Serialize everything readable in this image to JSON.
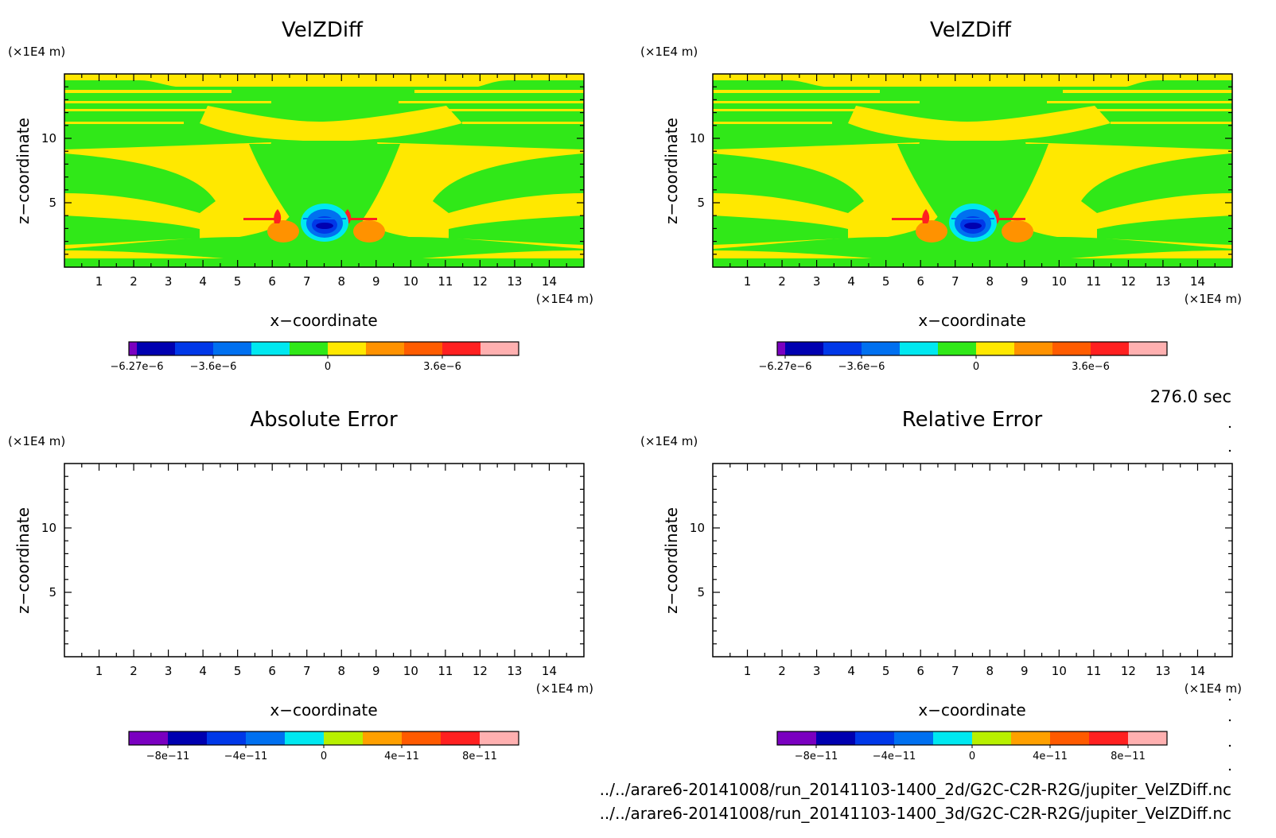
{
  "time_label": "276.0 sec",
  "file_paths": [
    "../../arare6-20141008/run_20141103-1400_2d/G2C-C2R-R2G/jupiter_VelZDiff.nc",
    "../../arare6-20141008/run_20141103-1400_3d/G2C-C2R-R2G/jupiter_VelZDiff.nc"
  ],
  "colors": {
    "velz_colorbar": [
      "#7a00c0",
      "#0000b0",
      "#0038e8",
      "#0070f0",
      "#00e8f0",
      "#30e818",
      "#ffe800",
      "#ff9200",
      "#ff5c00",
      "#ff2020",
      "#ffb0b0"
    ],
    "error_colorbar": [
      "#7a00c0",
      "#0000b0",
      "#0038e8",
      "#0070f0",
      "#00e8f0",
      "#b8f000",
      "#ffa000",
      "#ff5a00",
      "#ff2020",
      "#ffb0b0"
    ]
  },
  "chart_data": [
    {
      "type": "heatmap",
      "title": "VelZDiff",
      "xlabel": "x−coordinate",
      "ylabel": "z−coordinate",
      "x_unit": "(×1E4 m)",
      "y_unit": "(×1E4 m)",
      "xlim": [
        0,
        15
      ],
      "ylim": [
        0,
        15
      ],
      "x_ticks": [
        1,
        2,
        3,
        4,
        5,
        6,
        7,
        8,
        9,
        10,
        11,
        12,
        13,
        14
      ],
      "y_ticks": [
        5,
        10
      ],
      "colorbar_ticks": [
        "−6.27e−6",
        "−3.6e−6",
        "0",
        "3.6e−6"
      ],
      "field": "green/yellow banded vertical velocity difference with a blue downdraft core near x=7.6 z=3 and orange/red lobes on either side"
    },
    {
      "type": "heatmap",
      "title": "VelZDiff",
      "xlabel": "x−coordinate",
      "ylabel": "z−coordinate",
      "x_unit": "(×1E4 m)",
      "y_unit": "(×1E4 m)",
      "xlim": [
        0,
        15
      ],
      "ylim": [
        0,
        15
      ],
      "x_ticks": [
        1,
        2,
        3,
        4,
        5,
        6,
        7,
        8,
        9,
        10,
        11,
        12,
        13,
        14
      ],
      "y_ticks": [
        5,
        10
      ],
      "colorbar_ticks": [
        "−6.27e−6",
        "−3.6e−6",
        "0",
        "3.6e−6"
      ],
      "field": "identical to the first panel"
    },
    {
      "type": "heatmap",
      "title": "Absolute Error",
      "xlabel": "x−coordinate",
      "ylabel": "z−coordinate",
      "x_unit": "(×1E4 m)",
      "y_unit": "(×1E4 m)",
      "xlim": [
        0,
        15
      ],
      "ylim": [
        0,
        15
      ],
      "x_ticks": [
        1,
        2,
        3,
        4,
        5,
        6,
        7,
        8,
        9,
        10,
        11,
        12,
        13,
        14
      ],
      "y_ticks": [
        5,
        10
      ],
      "colorbar_ticks": [
        "−8e−11",
        "−4e−11",
        "0",
        "4e−11",
        "8e−11"
      ],
      "field": "empty (zero everywhere)"
    },
    {
      "type": "heatmap",
      "title": "Relative Error",
      "xlabel": "x−coordinate",
      "ylabel": "z−coordinate",
      "x_unit": "(×1E4 m)",
      "y_unit": "(×1E4 m)",
      "xlim": [
        0,
        15
      ],
      "ylim": [
        0,
        15
      ],
      "x_ticks": [
        1,
        2,
        3,
        4,
        5,
        6,
        7,
        8,
        9,
        10,
        11,
        12,
        13,
        14
      ],
      "y_ticks": [
        5,
        10
      ],
      "colorbar_ticks": [
        "−8e−11",
        "−4e−11",
        "0",
        "4e−11",
        "8e−11"
      ],
      "field": "empty (zero everywhere)"
    }
  ]
}
